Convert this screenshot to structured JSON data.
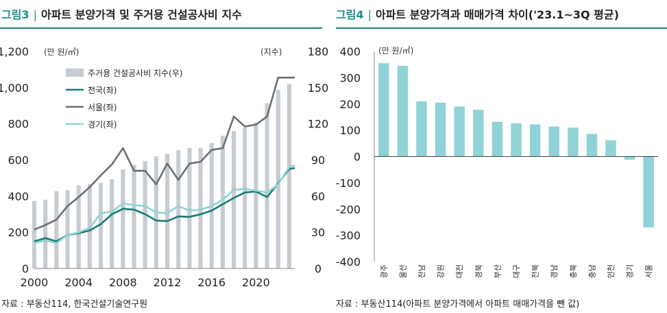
{
  "figure3": {
    "fig_no": "그림3",
    "title": "아파트 분양가격 및 주거용 건설공사비 지수",
    "source": "자료 : 부동산114, 한국건설기술연구원"
  },
  "figure4": {
    "fig_no": "그림4",
    "title": "아파트 분양가격과 매매가격 차이('23.1~3Q 평균)",
    "source": "자료 : 부동산114(아파트 분양가격에서 아파트 매매가격을 뺀 값)"
  },
  "chart_data": [
    {
      "type": "bar+line",
      "title": "아파트 분양가격 및 주거용 건설공사비 지수",
      "ylabel": "(만 원/㎡)",
      "ylabel_right": "(지수)",
      "ylim": [
        0,
        1200
      ],
      "ylim_right": [
        0,
        180
      ],
      "yticks": [
        "0",
        "200",
        "400",
        "600",
        "800",
        "1,000",
        "1,200"
      ],
      "yticks_right": [
        "0",
        "30",
        "60",
        "90",
        "120",
        "150",
        "180"
      ],
      "xticks": [
        "2000",
        "2004",
        "2008",
        "2012",
        "2016",
        "2020"
      ],
      "x_range": [
        2000,
        2023.5
      ],
      "legend": [
        "주거용 건설공사비 지수(우)",
        "전국(좌)",
        "서울(좌)",
        "경기(좌)"
      ],
      "colors": {
        "bar": "#c6ccd2",
        "national": "#187a75",
        "seoul": "#6b6f73",
        "gyeonggi": "#8fd3d6"
      },
      "bars": {
        "name": "주거용 건설공사비 지수(우)",
        "x": [
          2000,
          2001,
          2002,
          2003,
          2004,
          2005,
          2006,
          2007,
          2008,
          2009,
          2010,
          2011,
          2012,
          2013,
          2014,
          2015,
          2016,
          2017,
          2018,
          2019,
          2020,
          2021,
          2022,
          2023
        ],
        "values": [
          56,
          57,
          64,
          65,
          69,
          70,
          71,
          74,
          82,
          86,
          89,
          93,
          95,
          98,
          100,
          100,
          104,
          110,
          114,
          117,
          121,
          137,
          148,
          153
        ]
      },
      "series": [
        {
          "name": "전국(좌)",
          "x": [
            2000,
            2001,
            2002,
            2003,
            2004,
            2005,
            2006,
            2007,
            2008,
            2009,
            2010,
            2011,
            2012,
            2013,
            2014,
            2015,
            2016,
            2017,
            2018,
            2019,
            2020,
            2021,
            2022,
            2023,
            2023.5
          ],
          "values": [
            150,
            168,
            150,
            185,
            195,
            210,
            245,
            300,
            330,
            325,
            300,
            265,
            262,
            288,
            285,
            300,
            320,
            355,
            390,
            420,
            425,
            395,
            470,
            550,
            555
          ]
        },
        {
          "name": "서울(좌)",
          "x": [
            2000,
            2001,
            2002,
            2003,
            2004,
            2005,
            2006,
            2007,
            2008,
            2009,
            2010,
            2011,
            2012,
            2013,
            2014,
            2015,
            2016,
            2017,
            2018,
            2019,
            2020,
            2021,
            2022,
            2023,
            2023.5
          ],
          "values": [
            215,
            240,
            270,
            345,
            395,
            450,
            515,
            575,
            665,
            540,
            540,
            465,
            580,
            490,
            580,
            590,
            655,
            665,
            840,
            785,
            795,
            840,
            1055,
            1055,
            1055
          ]
        },
        {
          "name": "경기(좌)",
          "x": [
            2000,
            2001,
            2002,
            2003,
            2004,
            2005,
            2006,
            2007,
            2008,
            2009,
            2010,
            2011,
            2012,
            2013,
            2014,
            2015,
            2016,
            2017,
            2018,
            2019,
            2020,
            2021,
            2022,
            2023,
            2023.5
          ],
          "values": [
            140,
            155,
            140,
            185,
            200,
            225,
            305,
            315,
            360,
            350,
            345,
            310,
            305,
            345,
            320,
            325,
            345,
            380,
            435,
            440,
            430,
            420,
            465,
            560,
            570
          ]
        }
      ]
    },
    {
      "type": "bar",
      "title": "아파트 분양가격과 매매가격 차이('23.1~3Q 평균)",
      "ylabel": "(만 원/㎡)",
      "ylim": [
        -400,
        400
      ],
      "yticks": [
        "400",
        "300",
        "200",
        "100",
        "0",
        "-100",
        "-200",
        "-300",
        "-400"
      ],
      "categories": [
        "광주",
        "울산",
        "전남",
        "강원",
        "대전",
        "경북",
        "부산",
        "대구",
        "전북",
        "경남",
        "충북",
        "충남",
        "인천",
        "경기",
        "서울"
      ],
      "values": [
        355,
        345,
        210,
        205,
        190,
        178,
        132,
        126,
        122,
        114,
        110,
        86,
        62,
        -12,
        -270
      ],
      "color": "#8fd3d6"
    }
  ]
}
